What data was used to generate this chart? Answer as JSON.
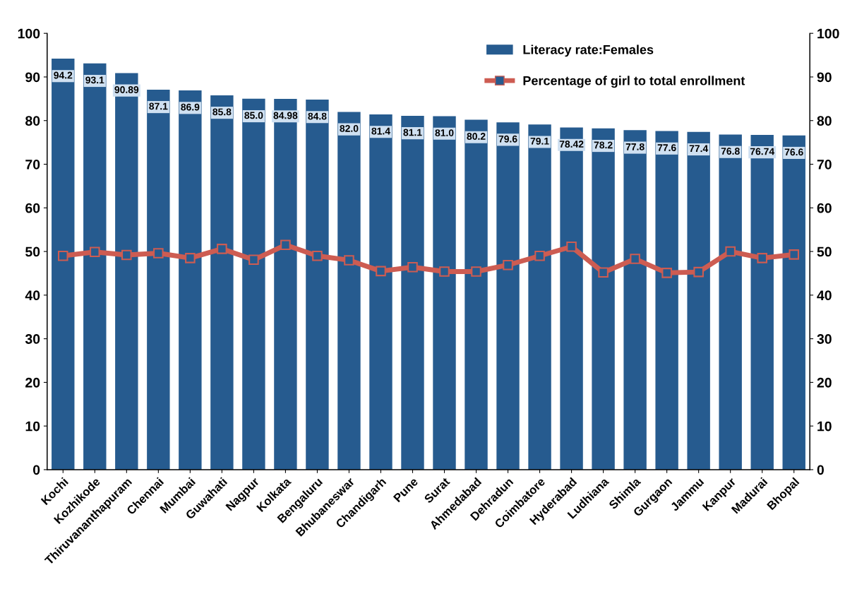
{
  "chart_data": {
    "type": "bar",
    "categories": [
      "Kochi",
      "Kozhikode",
      "Thiruvananthapuram",
      "Chennai",
      "Mumbai",
      "Guwahati",
      "Nagpur",
      "Kolkata",
      "Bengaluru",
      "Bhubaneswar",
      "Chandigarh",
      "Pune",
      "Surat",
      "Ahmedabad",
      "Dehradun",
      "Coimbatore",
      "Hyderabad",
      "Ludhiana",
      "Shimla",
      "Gurgaon",
      "Jammu",
      "Kanpur",
      "Madurai",
      "Bhopal"
    ],
    "series": [
      {
        "name": "Literacy rate:Females",
        "color": "#265b8f",
        "values": [
          94.2,
          93.1,
          90.89,
          87.1,
          86.9,
          85.8,
          85.0,
          84.98,
          84.8,
          82.0,
          81.4,
          81.1,
          81.0,
          80.2,
          79.6,
          79.1,
          78.42,
          78.2,
          77.8,
          77.6,
          77.4,
          76.8,
          76.74,
          76.6
        ],
        "value_labels": [
          "94.2",
          "93.1",
          "90.89",
          "87.1",
          "86.9",
          "85.8",
          "85.0",
          "84.98",
          "84.8",
          "82.0",
          "81.4",
          "81.1",
          "81.0",
          "80.2",
          "79.6",
          "79.1",
          "78.42",
          "78.2",
          "77.8",
          "77.6",
          "77.4",
          "76.8",
          "76.74",
          "76.6"
        ]
      },
      {
        "name": "Percentage of girl to total enrollment",
        "type": "line",
        "axis": "y2",
        "color": "#cd5c52",
        "marker": "square",
        "values": [
          49.0,
          49.9,
          49.2,
          49.6,
          48.5,
          50.6,
          48.1,
          51.5,
          49.0,
          48.0,
          45.5,
          46.4,
          45.4,
          45.4,
          46.9,
          49.0,
          51.1,
          45.2,
          48.3,
          45.1,
          45.3,
          50.0,
          48.5,
          49.3
        ]
      }
    ],
    "ylim": [
      0,
      100
    ],
    "yticks": [
      0,
      10,
      20,
      30,
      40,
      50,
      60,
      70,
      80,
      90,
      100
    ],
    "y2lim": [
      0,
      100
    ],
    "y2ticks": [
      0,
      10,
      20,
      30,
      40,
      50,
      60,
      70,
      80,
      90,
      100
    ],
    "grid": false,
    "legend": "top right"
  }
}
